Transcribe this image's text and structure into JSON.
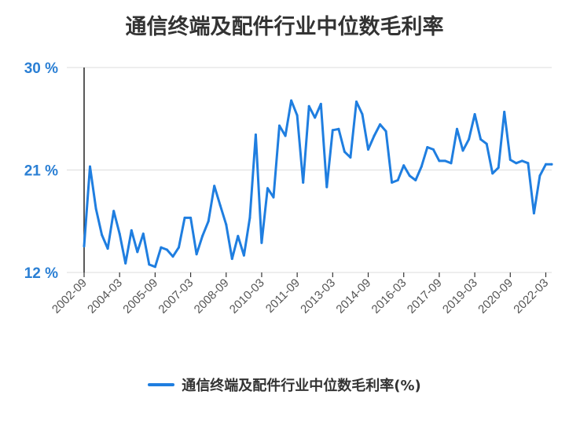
{
  "chart_data": {
    "type": "line",
    "title": "通信终端及配件行业中位数毛利率",
    "ylim": [
      12,
      30
    ],
    "yticks": [
      {
        "value": 12,
        "label": "12 %"
      },
      {
        "value": 21,
        "label": "21 %"
      },
      {
        "value": 30,
        "label": "30 %"
      }
    ],
    "xticks": [
      "2002-09",
      "2004-03",
      "2005-09",
      "2007-03",
      "2008-09",
      "2010-03",
      "2011-09",
      "2013-03",
      "2014-09",
      "2016-03",
      "2017-09",
      "2019-03",
      "2020-09",
      "2022-03"
    ],
    "grid": true,
    "legend_position": "bottom",
    "color": "#1f7ee0",
    "x": [
      "2002-09",
      "2002-12",
      "2003-03",
      "2003-06",
      "2003-09",
      "2003-12",
      "2004-03",
      "2004-06",
      "2004-09",
      "2004-12",
      "2005-03",
      "2005-06",
      "2005-09",
      "2005-12",
      "2006-03",
      "2006-06",
      "2006-09",
      "2006-12",
      "2007-03",
      "2007-06",
      "2007-09",
      "2007-12",
      "2008-03",
      "2008-06",
      "2008-09",
      "2008-12",
      "2009-03",
      "2009-06",
      "2009-09",
      "2009-12",
      "2010-03",
      "2010-06",
      "2010-09",
      "2010-12",
      "2011-03",
      "2011-06",
      "2011-09",
      "2011-12",
      "2012-03",
      "2012-06",
      "2012-09",
      "2012-12",
      "2013-03",
      "2013-06",
      "2013-09",
      "2013-12",
      "2014-03",
      "2014-06",
      "2014-09",
      "2014-12",
      "2015-03",
      "2015-06",
      "2015-09",
      "2015-12",
      "2016-03",
      "2016-06",
      "2016-09",
      "2016-12",
      "2017-03",
      "2017-06",
      "2017-09",
      "2017-12",
      "2018-03",
      "2018-06",
      "2018-09",
      "2018-12",
      "2019-03",
      "2019-06",
      "2019-09",
      "2019-12",
      "2020-03",
      "2020-06",
      "2020-09",
      "2020-12",
      "2021-03",
      "2021-06",
      "2021-09",
      "2021-12",
      "2022-03",
      "2022-06"
    ],
    "series": [
      {
        "name": "通信终端及配件行业中位数毛利率(%)",
        "values": [
          14.3,
          21.3,
          17.6,
          15.3,
          14.1,
          17.4,
          15.4,
          12.8,
          15.7,
          13.8,
          15.4,
          12.7,
          12.5,
          14.2,
          14.0,
          13.4,
          14.2,
          16.8,
          16.8,
          13.6,
          15.2,
          16.5,
          19.6,
          17.9,
          16.2,
          13.2,
          15.2,
          13.5,
          16.8,
          24.1,
          14.6,
          19.4,
          18.6,
          24.9,
          24.0,
          27.1,
          25.8,
          19.9,
          26.6,
          25.6,
          26.8,
          19.5,
          24.5,
          24.6,
          22.6,
          22.1,
          27.0,
          25.9,
          22.8,
          24.0,
          25.0,
          24.4,
          19.9,
          20.1,
          21.4,
          20.5,
          20.1,
          21.3,
          23.0,
          22.8,
          21.8,
          21.8,
          21.6,
          24.6,
          22.7,
          23.7,
          25.9,
          23.7,
          23.3,
          20.7,
          21.2,
          26.1,
          21.9,
          21.6,
          21.8,
          21.6,
          17.2,
          20.5,
          21.5,
          21.5
        ]
      }
    ]
  }
}
